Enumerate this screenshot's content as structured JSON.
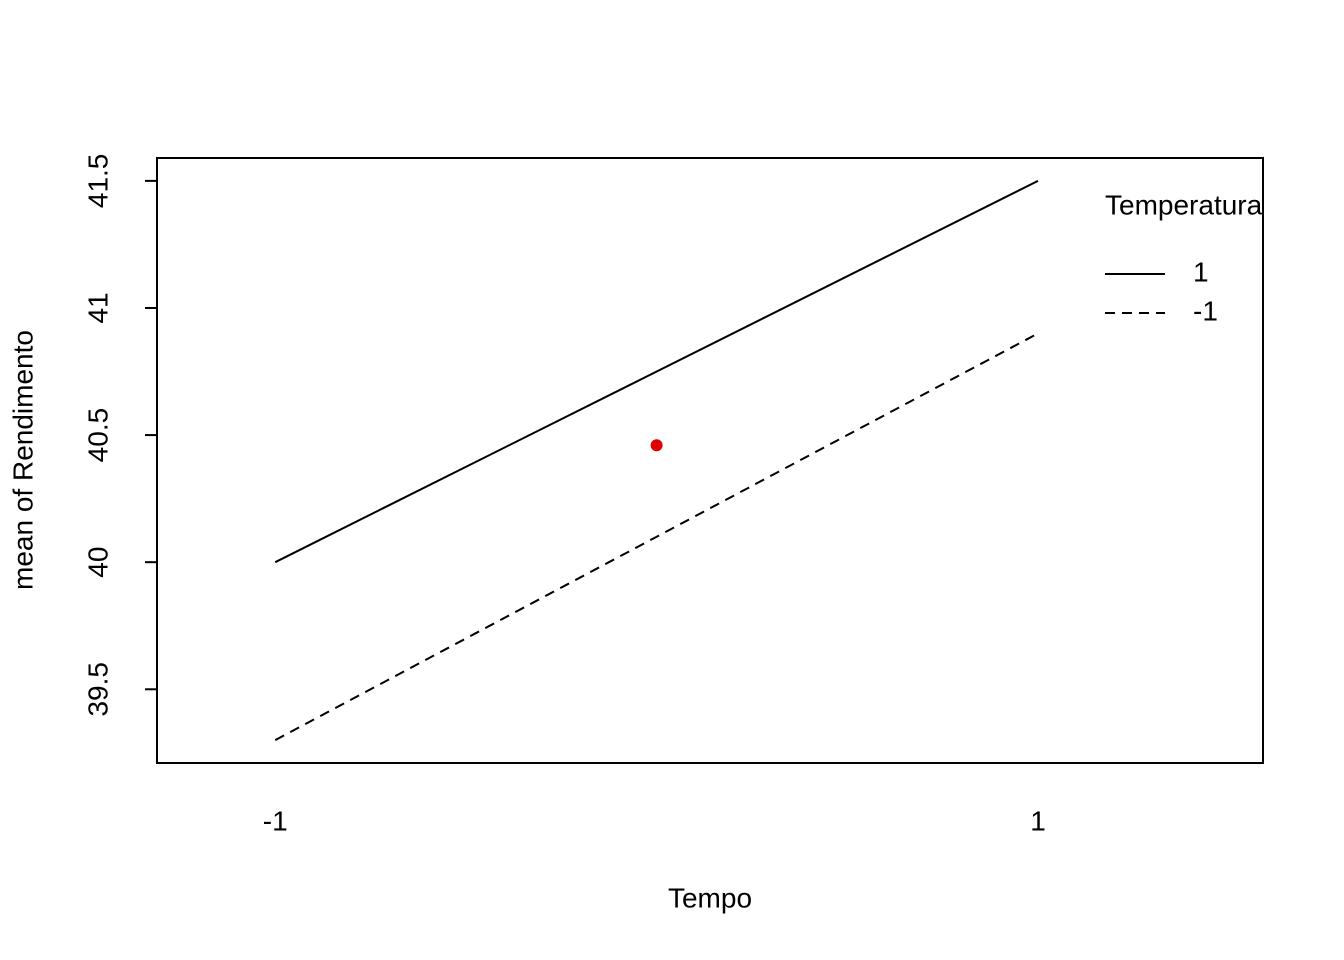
{
  "chart_data": {
    "type": "line",
    "x": [
      -1,
      1
    ],
    "xlim": [
      -1.31,
      1.59
    ],
    "xticks": [
      -1,
      1
    ],
    "ylim": [
      39.21,
      41.59
    ],
    "yticks": [
      39.5,
      40.0,
      40.5,
      41.0,
      41.5
    ],
    "x_label": "Tempo",
    "y_label": "mean of  Rendimento",
    "legend_title": "Temperatura",
    "legend_position": "top-right",
    "series": [
      {
        "name": "1",
        "color": "#000000",
        "dash": "solid",
        "values": [
          40.0,
          41.5
        ]
      },
      {
        "name": "-1",
        "color": "#000000",
        "dash": "dashed",
        "values": [
          39.3,
          40.9
        ]
      }
    ],
    "markers": {
      "x": [
        0
      ],
      "values": [
        40.46
      ],
      "color": "#e00000"
    }
  }
}
